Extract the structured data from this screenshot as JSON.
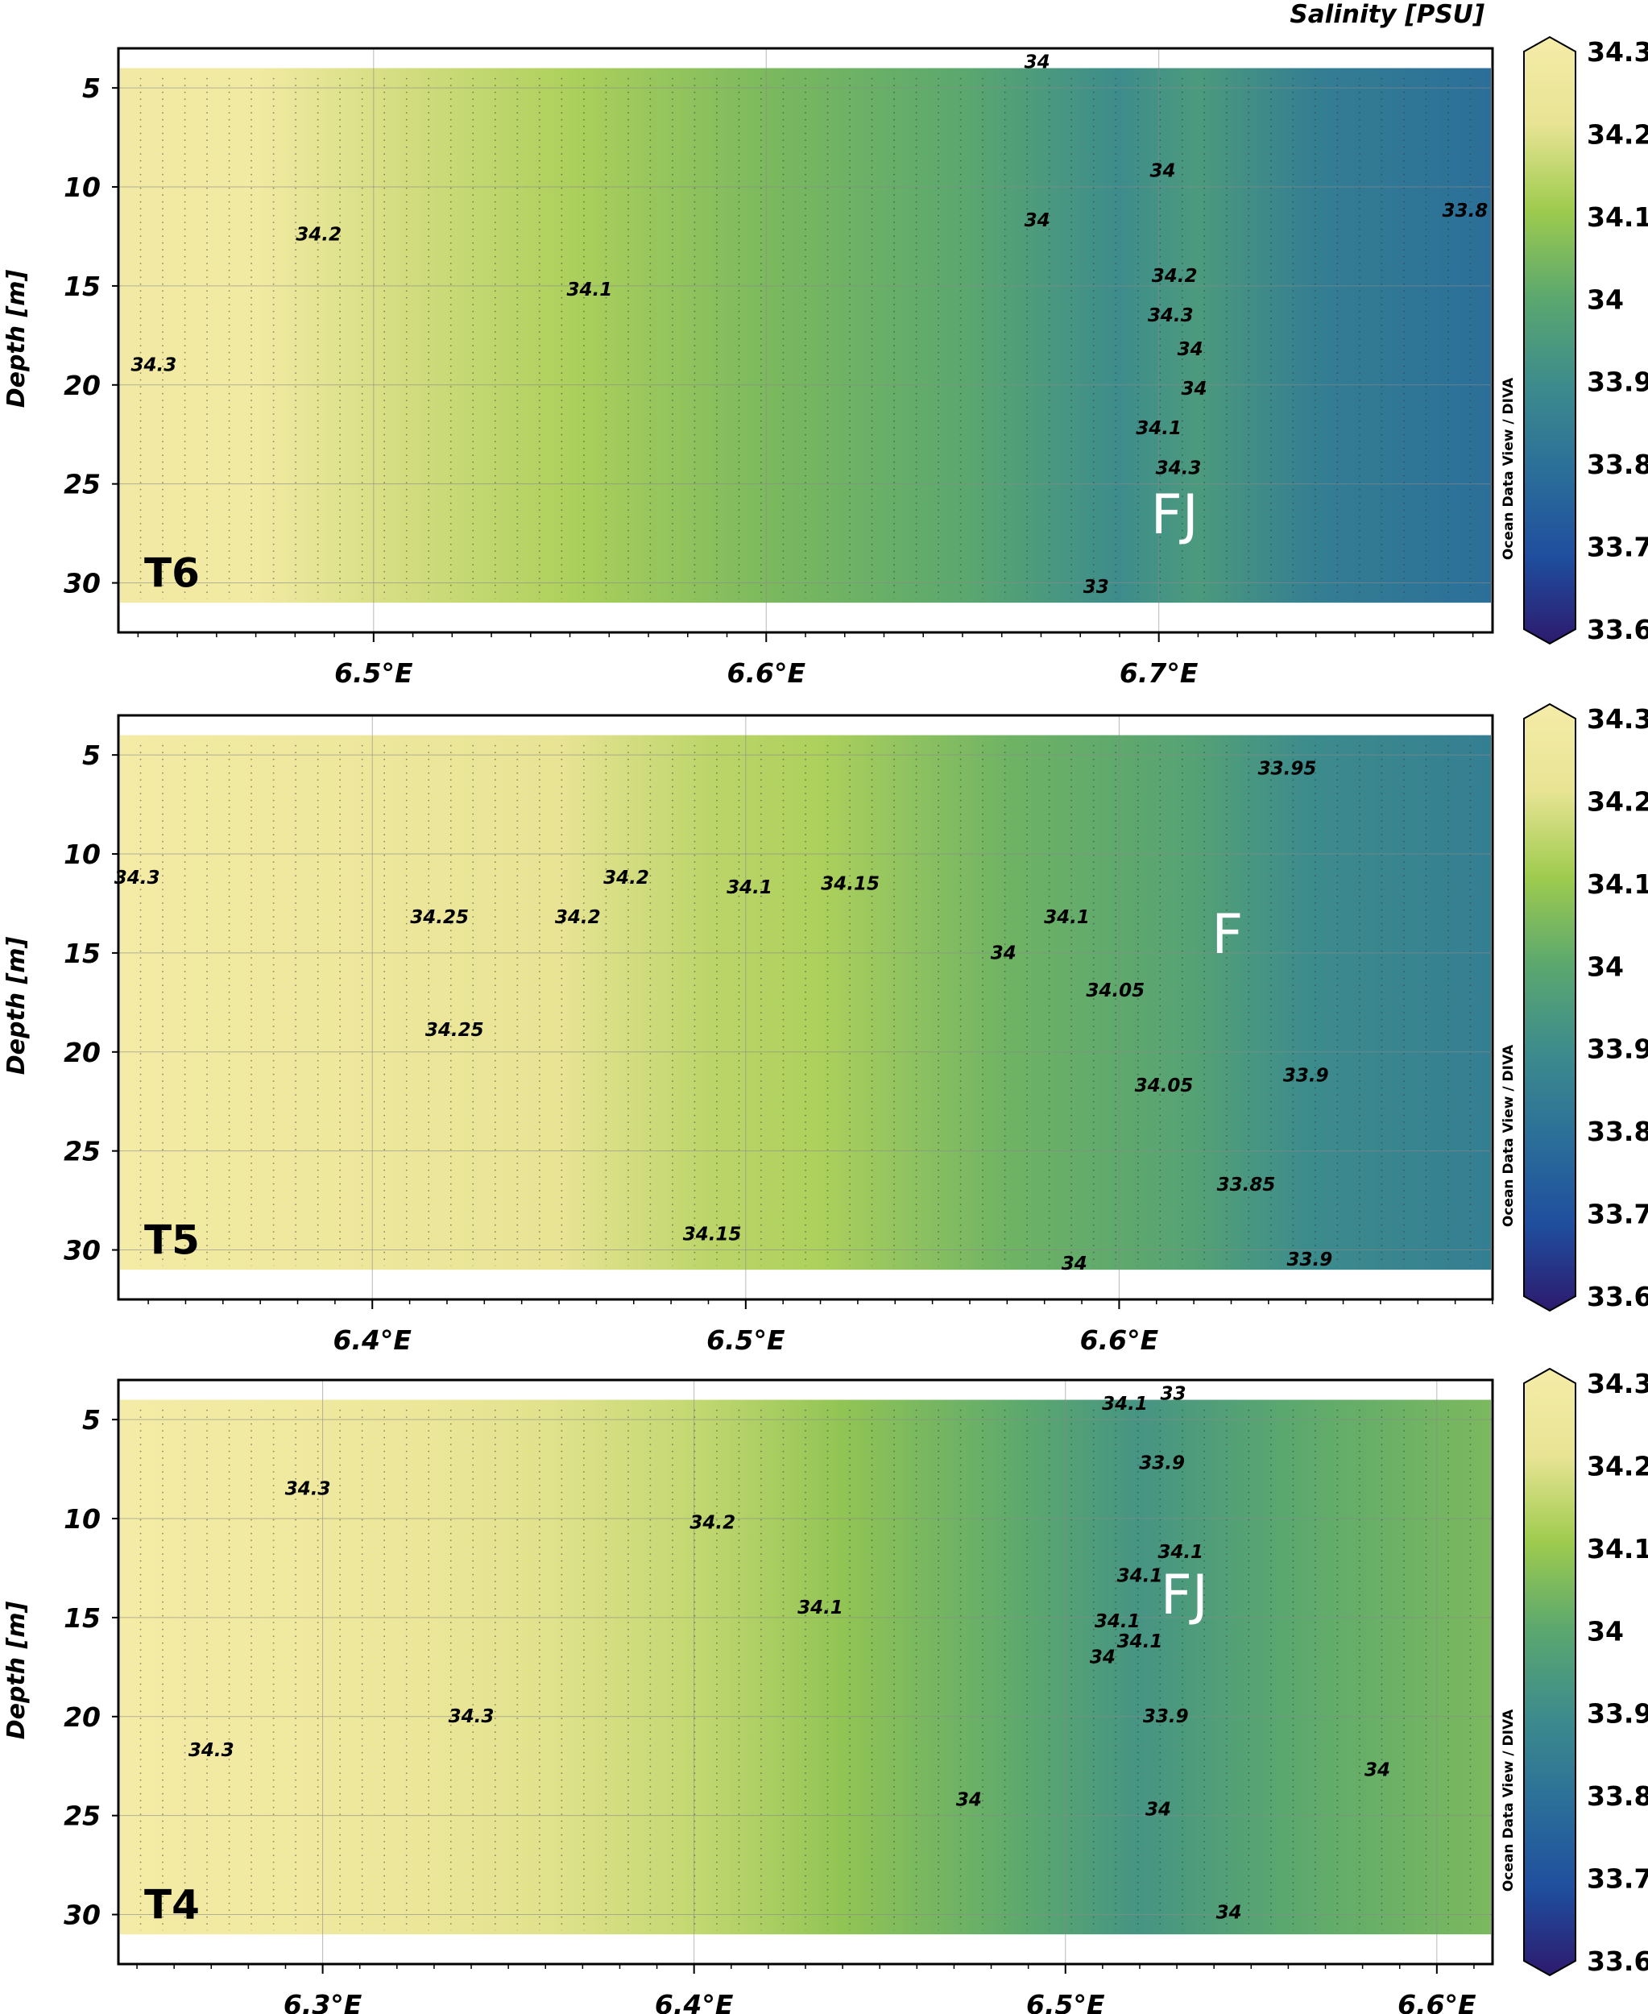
{
  "colorbar": {
    "title": "Salinity [PSU]",
    "side_label": "Ocean Data View / DIVA",
    "min": 33.6,
    "max": 34.3,
    "ticks": [
      "34.3",
      "34.2",
      "34.1",
      "34",
      "33.9",
      "33.8",
      "33.7",
      "33.6"
    ],
    "tick_values": [
      34.3,
      34.2,
      34.1,
      34.0,
      33.9,
      33.8,
      33.7,
      33.6
    ],
    "colormap": [
      "#2d1a6e",
      "#1f4e9e",
      "#2b6f99",
      "#3d8c8c",
      "#5ba86e",
      "#9ecb4e",
      "#e8e494",
      "#f5eca8"
    ]
  },
  "chart_data": [
    {
      "type": "heatmap",
      "panel_label": "T6",
      "ylabel": "Depth [m]",
      "xlim": [
        6.435,
        6.785
      ],
      "ylim": [
        32.5,
        3
      ],
      "xticks": [
        "6.5°E",
        "6.6°E",
        "6.7°E"
      ],
      "xtick_values": [
        6.5,
        6.6,
        6.7
      ],
      "yticks": [
        "5",
        "10",
        "15",
        "20",
        "25",
        "30"
      ],
      "ytick_values": [
        5,
        10,
        15,
        20,
        25,
        30
      ],
      "grid": true,
      "salinity_profile": {
        "x": [
          6.435,
          6.47,
          6.5,
          6.55,
          6.6,
          6.65,
          6.69,
          6.71,
          6.74,
          6.785
        ],
        "values": [
          34.28,
          34.27,
          34.18,
          34.12,
          34.05,
          34.0,
          33.9,
          33.95,
          33.85,
          33.8
        ]
      },
      "annotations": [
        {
          "text": "FJ",
          "x": 6.704,
          "depth": 27.5
        }
      ],
      "contour_labels": [
        {
          "text": "34.3",
          "x": 6.444,
          "depth": 19.3
        },
        {
          "text": "34.2",
          "x": 6.486,
          "depth": 12.7
        },
        {
          "text": "34.1",
          "x": 6.555,
          "depth": 15.5
        },
        {
          "text": "34",
          "x": 6.669,
          "depth": 12.0
        },
        {
          "text": "34",
          "x": 6.701,
          "depth": 9.5
        },
        {
          "text": "33.8",
          "x": 6.778,
          "depth": 11.5
        },
        {
          "text": "34.2",
          "x": 6.704,
          "depth": 14.8
        },
        {
          "text": "34.3",
          "x": 6.703,
          "depth": 16.8
        },
        {
          "text": "34",
          "x": 6.708,
          "depth": 18.5
        },
        {
          "text": "34",
          "x": 6.709,
          "depth": 20.5
        },
        {
          "text": "34.1",
          "x": 6.7,
          "depth": 22.5
        },
        {
          "text": "34.3",
          "x": 6.705,
          "depth": 24.5
        },
        {
          "text": "33",
          "x": 6.684,
          "depth": 30.5
        },
        {
          "text": "34",
          "x": 6.669,
          "depth": 4.0
        }
      ]
    },
    {
      "type": "heatmap",
      "panel_label": "T5",
      "ylabel": "Depth [m]",
      "xlim": [
        6.332,
        6.7
      ],
      "ylim": [
        32.5,
        3
      ],
      "xticks": [
        "6.4°E",
        "6.5°E",
        "6.6°E"
      ],
      "xtick_values": [
        6.4,
        6.5,
        6.6
      ],
      "yticks": [
        "5",
        "10",
        "15",
        "20",
        "25",
        "30"
      ],
      "ytick_values": [
        5,
        10,
        15,
        20,
        25,
        30
      ],
      "grid": true,
      "salinity_profile": {
        "x": [
          6.332,
          6.36,
          6.4,
          6.45,
          6.49,
          6.52,
          6.57,
          6.62,
          6.65,
          6.7
        ],
        "values": [
          34.29,
          34.26,
          34.24,
          34.2,
          34.14,
          34.12,
          34.03,
          33.98,
          33.9,
          33.85
        ]
      },
      "annotations": [
        {
          "text": "F",
          "x": 6.629,
          "depth": 15.0
        }
      ],
      "contour_labels": [
        {
          "text": "34.3",
          "x": 6.337,
          "depth": 11.5
        },
        {
          "text": "34.25",
          "x": 6.418,
          "depth": 13.5
        },
        {
          "text": "34.25",
          "x": 6.422,
          "depth": 19.2
        },
        {
          "text": "34.2",
          "x": 6.455,
          "depth": 13.5
        },
        {
          "text": "34.2",
          "x": 6.468,
          "depth": 11.5
        },
        {
          "text": "34.1",
          "x": 6.501,
          "depth": 12.0
        },
        {
          "text": "34.15",
          "x": 6.528,
          "depth": 11.8
        },
        {
          "text": "34",
          "x": 6.569,
          "depth": 15.3
        },
        {
          "text": "34.1",
          "x": 6.586,
          "depth": 13.5
        },
        {
          "text": "34.05",
          "x": 6.599,
          "depth": 17.2
        },
        {
          "text": "34.05",
          "x": 6.612,
          "depth": 22.0
        },
        {
          "text": "33.95",
          "x": 6.645,
          "depth": 6.0
        },
        {
          "text": "33.9",
          "x": 6.65,
          "depth": 21.5
        },
        {
          "text": "33.85",
          "x": 6.634,
          "depth": 27.0
        },
        {
          "text": "34.15",
          "x": 6.491,
          "depth": 29.5
        },
        {
          "text": "34",
          "x": 6.588,
          "depth": 31.0
        },
        {
          "text": "33.9",
          "x": 6.651,
          "depth": 30.8
        }
      ]
    },
    {
      "type": "heatmap",
      "panel_label": "T4",
      "ylabel": "Depth [m]",
      "xlim": [
        6.245,
        6.615
      ],
      "ylim": [
        32.5,
        3
      ],
      "xticks": [
        "6.3°E",
        "6.4°E",
        "6.5°E",
        "6.6°E"
      ],
      "xtick_values": [
        6.3,
        6.4,
        6.5,
        6.6
      ],
      "yticks": [
        "5",
        "10",
        "15",
        "20",
        "25",
        "30"
      ],
      "ytick_values": [
        5,
        10,
        15,
        20,
        25,
        30
      ],
      "grid": true,
      "salinity_profile": {
        "x": [
          6.245,
          6.29,
          6.33,
          6.36,
          6.4,
          6.44,
          6.49,
          6.52,
          6.56,
          6.615
        ],
        "values": [
          34.29,
          34.26,
          34.22,
          34.19,
          34.15,
          34.08,
          34.0,
          33.93,
          34.0,
          34.05
        ]
      },
      "annotations": [
        {
          "text": "FJ",
          "x": 6.532,
          "depth": 14.8
        }
      ],
      "contour_labels": [
        {
          "text": "34.3",
          "x": 6.296,
          "depth": 8.8
        },
        {
          "text": "34.3",
          "x": 6.34,
          "depth": 20.3
        },
        {
          "text": "34.3",
          "x": 6.27,
          "depth": 22.0
        },
        {
          "text": "34.2",
          "x": 6.405,
          "depth": 10.5
        },
        {
          "text": "34.1",
          "x": 6.434,
          "depth": 14.8
        },
        {
          "text": "34.1",
          "x": 6.516,
          "depth": 4.5
        },
        {
          "text": "33.9",
          "x": 6.526,
          "depth": 7.5
        },
        {
          "text": "34.1",
          "x": 6.531,
          "depth": 12.0
        },
        {
          "text": "34.1",
          "x": 6.52,
          "depth": 13.2
        },
        {
          "text": "34.1",
          "x": 6.514,
          "depth": 15.5
        },
        {
          "text": "34",
          "x": 6.51,
          "depth": 17.3
        },
        {
          "text": "34.1",
          "x": 6.52,
          "depth": 16.5
        },
        {
          "text": "33.9",
          "x": 6.527,
          "depth": 20.3
        },
        {
          "text": "34",
          "x": 6.474,
          "depth": 24.5
        },
        {
          "text": "34",
          "x": 6.525,
          "depth": 25.0
        },
        {
          "text": "34",
          "x": 6.584,
          "depth": 23.0
        },
        {
          "text": "34",
          "x": 6.544,
          "depth": 30.2
        },
        {
          "text": "33",
          "x": 6.529,
          "depth": 4.0
        }
      ]
    }
  ]
}
